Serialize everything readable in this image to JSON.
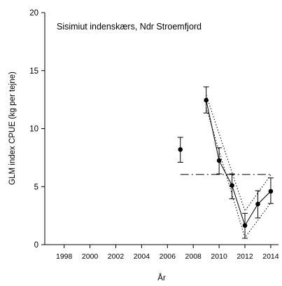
{
  "chart_data": {
    "type": "line",
    "title": "Sisimiut indenskærs, Ndr Stroemfjord",
    "xlabel": "År",
    "ylabel": "GLM index CPUE (kg per tejne)",
    "xlim": [
      1996.5,
      2014.6
    ],
    "ylim": [
      0,
      20
    ],
    "xticks": [
      1998,
      2000,
      2002,
      2004,
      2006,
      2008,
      2010,
      2012,
      2014
    ],
    "yticks": [
      0,
      5,
      10,
      15,
      20
    ],
    "grid": false,
    "series": [
      {
        "kind": "points-with-error-bars",
        "x": [
          2007,
          2009,
          2010,
          2011,
          2012,
          2013,
          2014
        ],
        "y": [
          8.2,
          12.45,
          7.25,
          5.1,
          1.65,
          3.5,
          4.6
        ],
        "err_low": [
          7.1,
          11.35,
          6.1,
          3.95,
          0.55,
          2.3,
          3.55
        ],
        "err_high": [
          9.25,
          13.6,
          8.35,
          6.1,
          2.7,
          4.65,
          5.75
        ]
      },
      {
        "kind": "fitted-line",
        "style": "solid",
        "x": [
          2009,
          2010,
          2011,
          2012,
          2013,
          2014
        ],
        "y": [
          12.45,
          7.25,
          5.1,
          1.65,
          3.5,
          4.6
        ]
      },
      {
        "kind": "confidence-band-upper",
        "style": "dotted",
        "x": [
          2009,
          2012,
          2014
        ],
        "y": [
          12.9,
          2.9,
          6.0
        ]
      },
      {
        "kind": "confidence-band-lower",
        "style": "dotted",
        "x": [
          2009,
          2012,
          2014
        ],
        "y": [
          11.8,
          0.6,
          3.6
        ]
      },
      {
        "kind": "reference-line",
        "style": "dash-dot",
        "x": [
          2007,
          2014
        ],
        "y": [
          6.05,
          6.05
        ]
      }
    ]
  }
}
